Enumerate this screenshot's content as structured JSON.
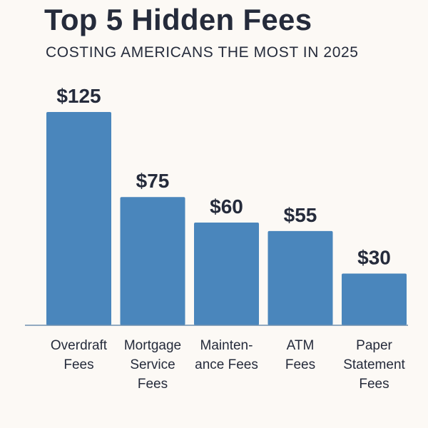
{
  "title": "Top 5 Hidden Fees",
  "subtitle": "COSTING AMERICANS THE MOST IN 2025",
  "colors": {
    "background": "#fcf9f5",
    "bar": "#4a86bc",
    "text": "#252b3b",
    "axis": "#6f8fae"
  },
  "chart_data": {
    "type": "bar",
    "title": "Top 5 Hidden Fees",
    "subtitle": "COSTING AMERICANS THE MOST IN 2025",
    "xlabel": "",
    "ylabel": "",
    "ylim": [
      0,
      135
    ],
    "grid": false,
    "legend": "none",
    "categories": [
      [
        "Overdraft",
        "Fees"
      ],
      [
        "Mortgage",
        "Service",
        "Fees"
      ],
      [
        "Mainten-",
        "ance Fees"
      ],
      [
        "ATM",
        "Fees"
      ],
      [
        "Paper",
        "Statement",
        "Fees"
      ]
    ],
    "values": [
      125,
      75,
      60,
      55,
      30
    ],
    "value_labels": [
      "$125",
      "$75",
      "$60",
      "$55",
      "$30"
    ]
  }
}
